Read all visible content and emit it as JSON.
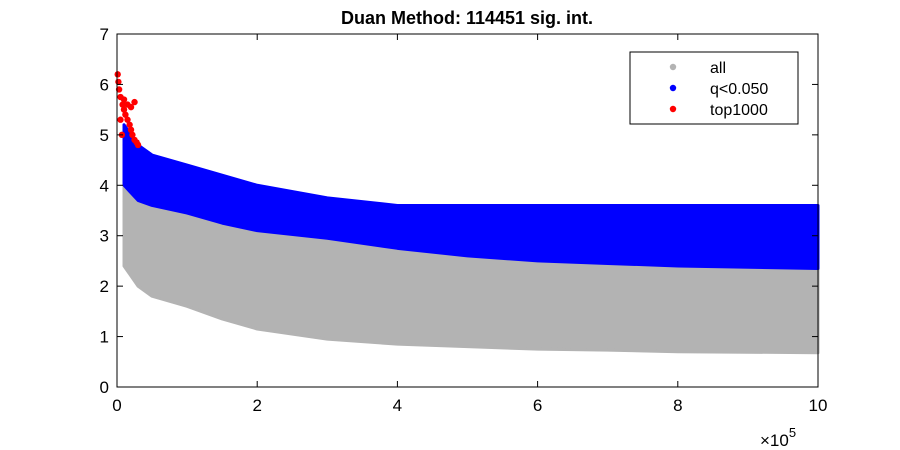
{
  "chart_data": {
    "type": "scatter",
    "title": "Duan Method: 114451 sig. int.",
    "xlabel": "",
    "ylabel": "",
    "xlim": [
      0,
      10
    ],
    "ylim": [
      0,
      7
    ],
    "x_multiplier_label": "×10",
    "x_multiplier_exponent": "5",
    "x_ticks": [
      "0",
      "2",
      "4",
      "6",
      "8",
      "10"
    ],
    "y_ticks": [
      "0",
      "1",
      "2",
      "3",
      "4",
      "5",
      "6",
      "7"
    ],
    "grid": false,
    "legend_position": "top-right",
    "series": [
      {
        "name": "all",
        "color": "#b3b3b3",
        "band": {
          "x": [
            0.1,
            0.3,
            0.5,
            1,
            1.5,
            2,
            3,
            4,
            5,
            6,
            7,
            8,
            10
          ],
          "lower": [
            2.4,
            2.0,
            1.8,
            1.6,
            1.35,
            1.15,
            0.95,
            0.85,
            0.8,
            0.75,
            0.73,
            0.7,
            0.68
          ],
          "upper": [
            4.0,
            3.7,
            3.6,
            3.45,
            3.25,
            3.1,
            2.95,
            2.75,
            2.6,
            2.5,
            2.45,
            2.4,
            2.35
          ]
        }
      },
      {
        "name": "q<0.050",
        "color": "#0000ff",
        "band": {
          "x": [
            0.1,
            0.3,
            0.5,
            1,
            1.5,
            2,
            3,
            4,
            5,
            6,
            7,
            8,
            10
          ],
          "lower": [
            4.0,
            3.7,
            3.6,
            3.45,
            3.25,
            3.1,
            2.95,
            2.75,
            2.6,
            2.5,
            2.45,
            2.4,
            2.35
          ],
          "upper": [
            5.2,
            4.8,
            4.6,
            4.4,
            4.2,
            4.0,
            3.75,
            3.6,
            3.6,
            3.6,
            3.6,
            3.6,
            3.6
          ]
        }
      },
      {
        "name": "top1000",
        "color": "#ff0000",
        "points": [
          [
            0.01,
            6.2
          ],
          [
            0.02,
            6.05
          ],
          [
            0.03,
            5.9
          ],
          [
            0.05,
            5.75
          ],
          [
            0.08,
            5.6
          ],
          [
            0.1,
            5.5
          ],
          [
            0.12,
            5.4
          ],
          [
            0.15,
            5.3
          ],
          [
            0.18,
            5.2
          ],
          [
            0.2,
            5.1
          ],
          [
            0.22,
            5.0
          ],
          [
            0.25,
            4.9
          ],
          [
            0.28,
            4.85
          ],
          [
            0.3,
            4.8
          ],
          [
            0.15,
            5.6
          ],
          [
            0.2,
            5.55
          ],
          [
            0.25,
            5.65
          ],
          [
            0.1,
            5.7
          ],
          [
            0.05,
            5.3
          ],
          [
            0.07,
            5.0
          ]
        ]
      }
    ]
  }
}
